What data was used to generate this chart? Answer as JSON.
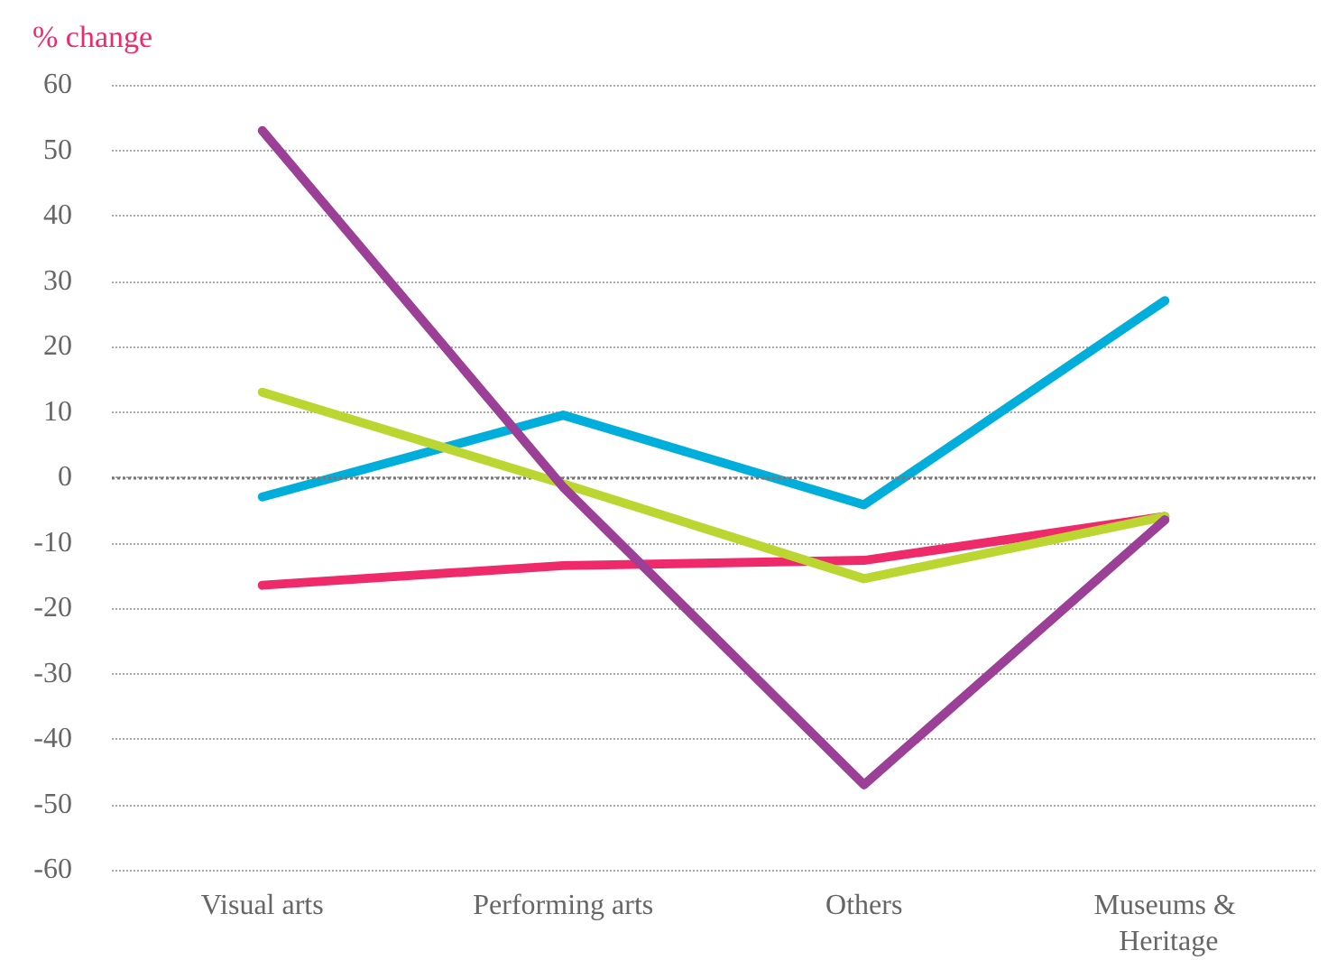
{
  "chart_data": {
    "type": "line",
    "ylabel": "% change",
    "categories": [
      "Visual arts",
      "Performing arts",
      "Others",
      "Museums & Heritage"
    ],
    "series": [
      {
        "color": "#ee2a6b",
        "values": [
          -16.5,
          -13.5,
          -12.7,
          -6
        ]
      },
      {
        "color": "#00aedb",
        "values": [
          -3,
          9.5,
          -4.2,
          27
        ]
      },
      {
        "color": "#bcd631",
        "values": [
          13,
          -1,
          -15.5,
          -6
        ]
      },
      {
        "color": "#9b3f97",
        "values": [
          53,
          -1.5,
          -47,
          -6.5
        ]
      }
    ],
    "ylim": [
      -60,
      60
    ],
    "yticks": [
      -60,
      -50,
      -40,
      -30,
      -20,
      -10,
      0,
      10,
      20,
      30,
      40,
      50,
      60
    ],
    "grid": "y",
    "marker": "none",
    "line_style": "solid",
    "ref_lines": [
      {
        "axis": "y",
        "value": 0,
        "color": "#777777",
        "line_style": "dotted"
      }
    ]
  }
}
